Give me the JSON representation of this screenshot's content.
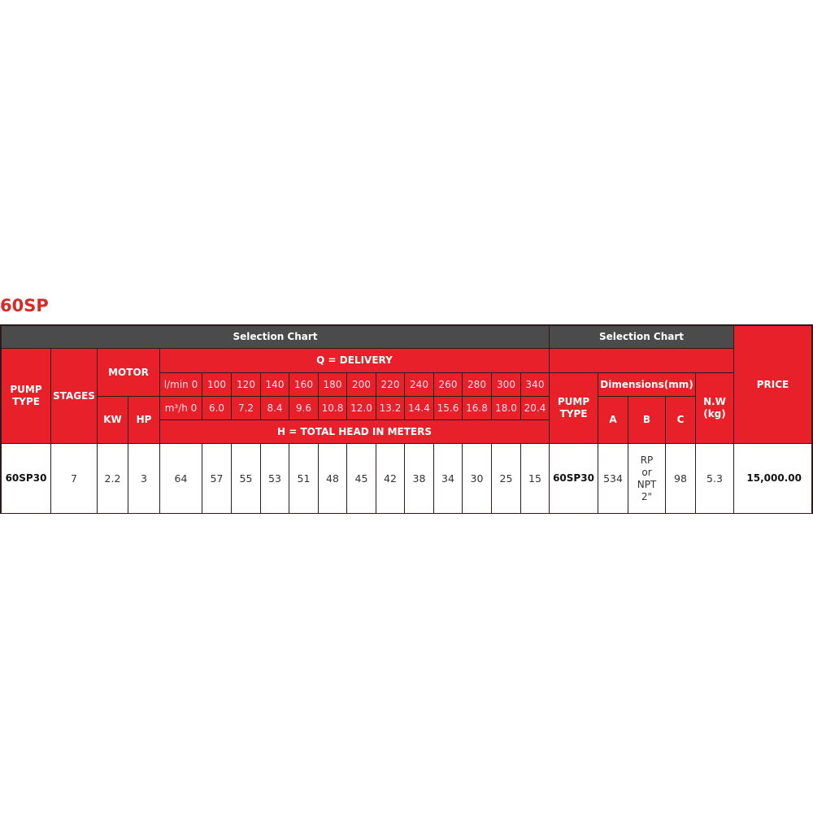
{
  "title": "60SP",
  "header": {
    "selection_chart_left": "Selection Chart",
    "selection_chart_right": "Selection Chart",
    "pump_type": "PUMP TYPE",
    "stages": "STAGES",
    "motor": "MOTOR",
    "kw": "KW",
    "hp": "HP",
    "q_delivery": "Q = DELIVERY",
    "lmin_label": "l/min 0",
    "m3h_label": "m³/h 0",
    "lmin": [
      "100",
      "120",
      "140",
      "160",
      "180",
      "200",
      "220",
      "240",
      "260",
      "280",
      "300",
      "340"
    ],
    "m3h": [
      "6.0",
      "7.2",
      "8.4",
      "9.6",
      "10.8",
      "12.0",
      "13.2",
      "14.4",
      "15.6",
      "16.8",
      "18.0",
      "20.4"
    ],
    "total_head": "H = TOTAL HEAD IN METERS",
    "pump_type_right": "PUMP TYPE",
    "dimensions": "Dimensions(mm)",
    "a": "A",
    "b": "B",
    "c": "C",
    "nw": "N.W (kg)",
    "price": "PRICE"
  },
  "row": {
    "pump_type": "60SP30",
    "stages": "7",
    "kw": "2.2",
    "hp": "3",
    "head": [
      "64",
      "57",
      "55",
      "53",
      "51",
      "48",
      "45",
      "42",
      "38",
      "34",
      "30",
      "25",
      "15"
    ],
    "pump_type_right": "60SP30",
    "a": "534",
    "b": "RP or NPT 2\"",
    "c": "98",
    "nw": "5.3",
    "price": "15,000.00"
  }
}
